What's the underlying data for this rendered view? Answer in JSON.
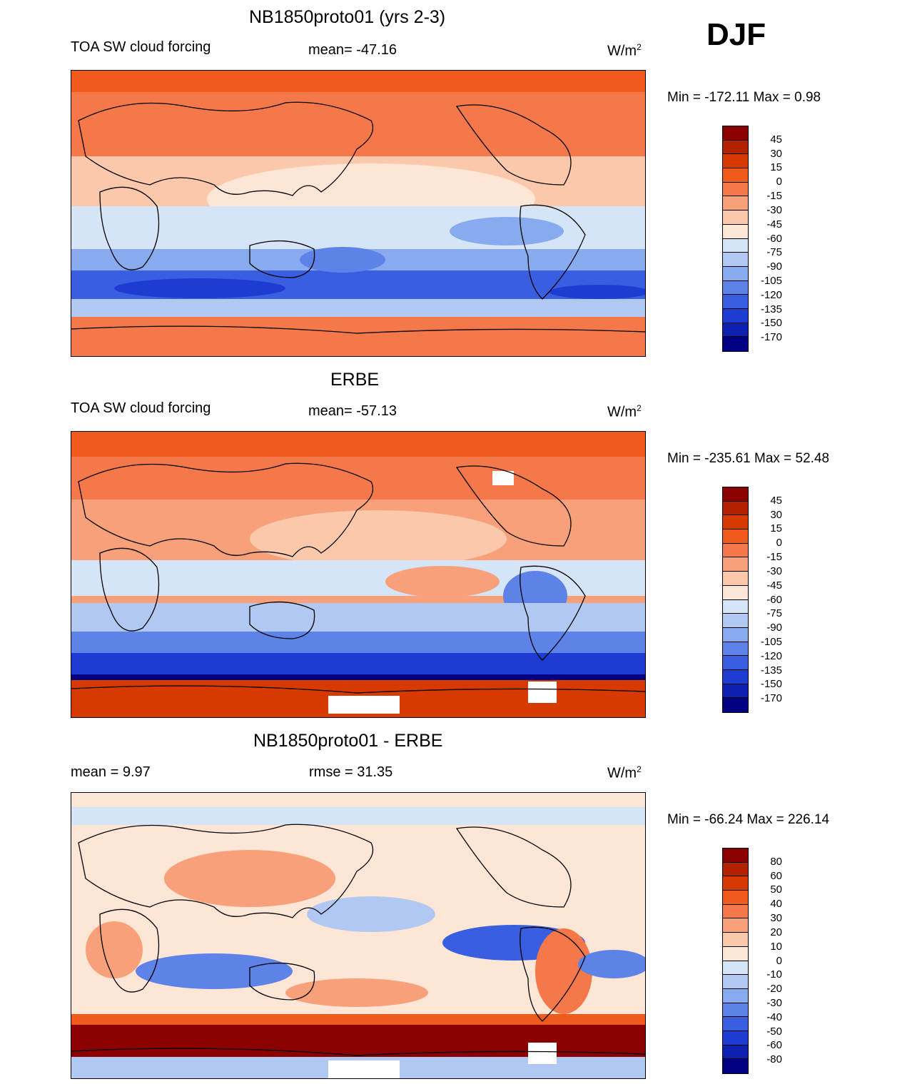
{
  "season": "DJF",
  "panels": [
    {
      "title": "NB1850proto01 (yrs 2-3)",
      "left_label": "TOA SW cloud forcing",
      "center_label": "mean= -47.16",
      "units_base": "W/m",
      "units_exp": "2",
      "minmax": "Min = -172.11 Max =   0.98",
      "levels": [
        "45",
        "30",
        "15",
        "0",
        "-15",
        "-30",
        "-45",
        "-60",
        "-75",
        "-90",
        "-105",
        "-120",
        "-135",
        "-150",
        "-170"
      ],
      "colors": [
        "#8b0000",
        "#b22200",
        "#d63a00",
        "#f05a1a",
        "#f4784a",
        "#f7a07a",
        "#fcc8ac",
        "#fde6d6",
        "#d6e4f8",
        "#b0c8f2",
        "#88aaee",
        "#5d82e8",
        "#3a5ee0",
        "#1d3dd2",
        "#0f20b0",
        "#000080"
      ]
    },
    {
      "title": "ERBE",
      "left_label": "TOA SW cloud forcing",
      "center_label": "mean= -57.13",
      "units_base": "W/m",
      "units_exp": "2",
      "minmax": "Min = -235.61 Max =  52.48",
      "levels": [
        "45",
        "30",
        "15",
        "0",
        "-15",
        "-30",
        "-45",
        "-60",
        "-75",
        "-90",
        "-105",
        "-120",
        "-135",
        "-150",
        "-170"
      ],
      "colors": [
        "#8b0000",
        "#b22200",
        "#d63a00",
        "#f05a1a",
        "#f4784a",
        "#f7a07a",
        "#fcc8ac",
        "#fde6d6",
        "#d6e4f8",
        "#b0c8f2",
        "#88aaee",
        "#5d82e8",
        "#3a5ee0",
        "#1d3dd2",
        "#0f20b0",
        "#000080"
      ]
    },
    {
      "title": "NB1850proto01 - ERBE",
      "left_label": "mean =   9.97",
      "center_label": "rmse =  31.35",
      "units_base": "W/m",
      "units_exp": "2",
      "minmax": "Min = -66.24 Max = 226.14",
      "levels": [
        "80",
        "60",
        "50",
        "40",
        "30",
        "20",
        "10",
        "0",
        "-10",
        "-20",
        "-30",
        "-40",
        "-50",
        "-60",
        "-80"
      ],
      "colors": [
        "#8b0000",
        "#b22200",
        "#d63a00",
        "#f05a1a",
        "#f4784a",
        "#f7a07a",
        "#fcc8ac",
        "#fde6d6",
        "#d6e4f8",
        "#b0c8f2",
        "#88aaee",
        "#5d82e8",
        "#3a5ee0",
        "#1d3dd2",
        "#0f20b0",
        "#000080"
      ]
    }
  ]
}
